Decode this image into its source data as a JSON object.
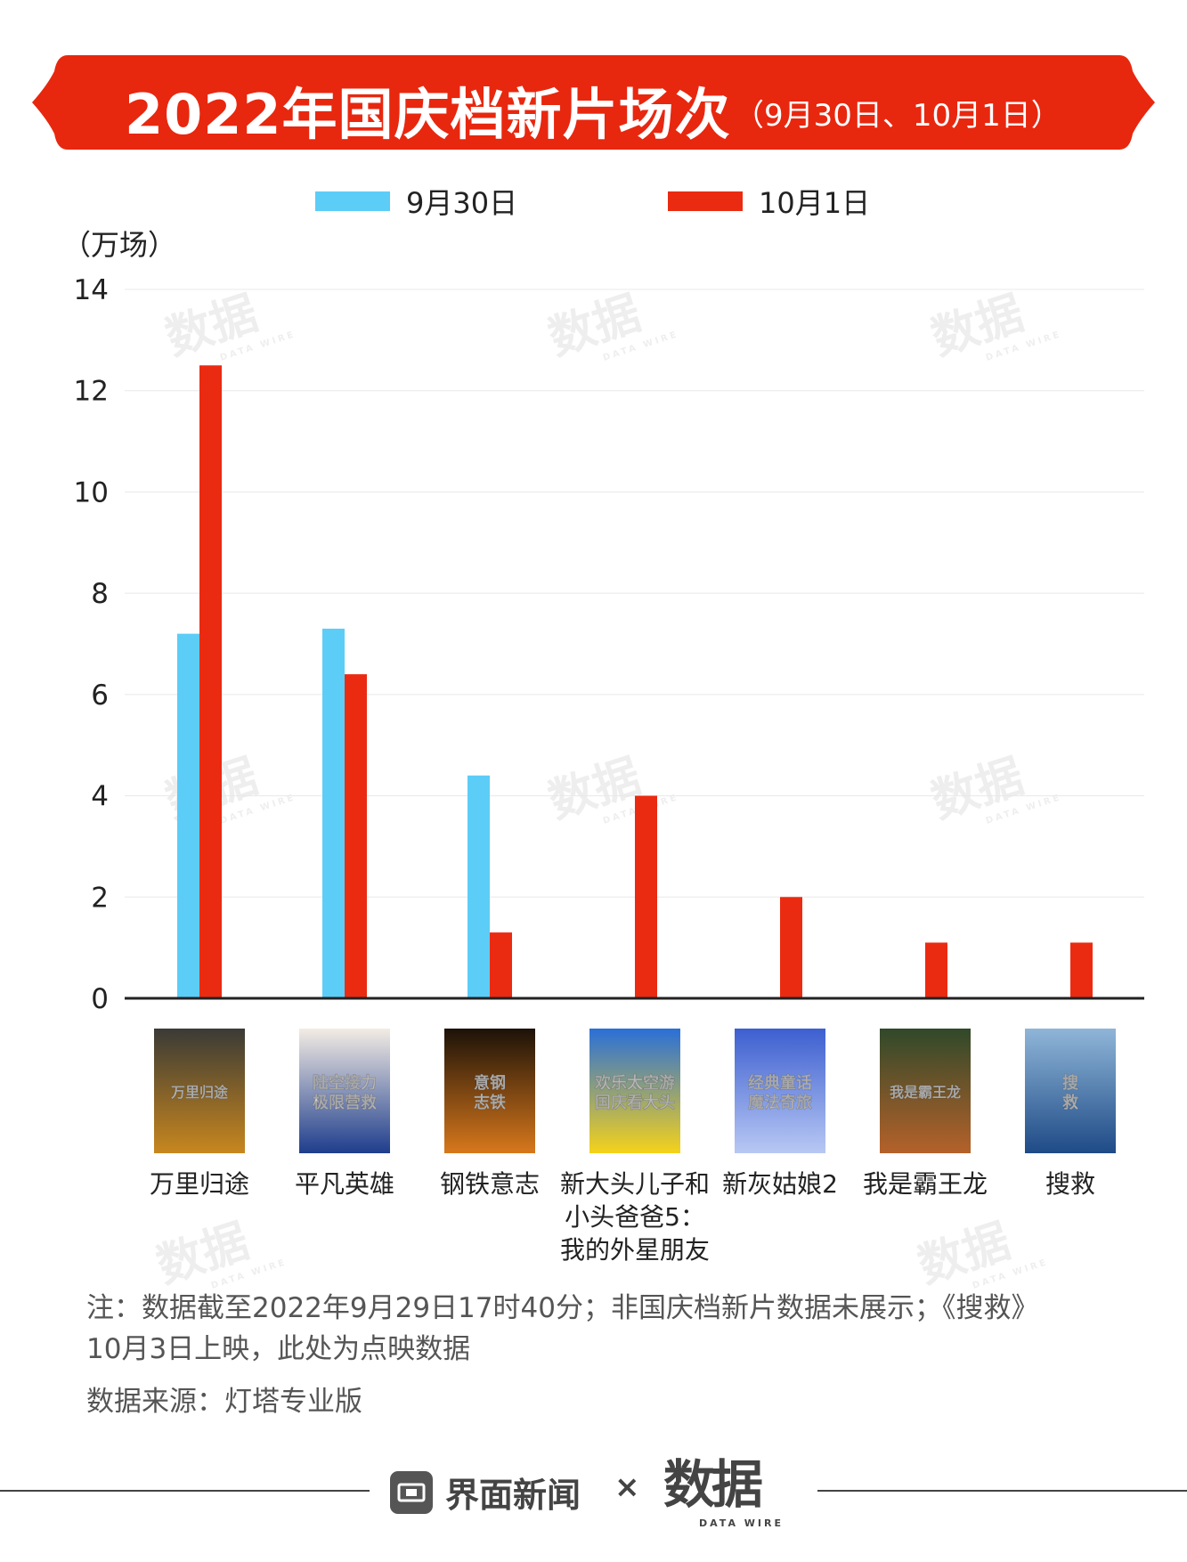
{
  "colors": {
    "series_1": "#5ccdf7",
    "series_2": "#ea2b12",
    "banner": "#e8270f",
    "axis": "#222222",
    "grid": "#e8e8e8"
  },
  "banner": {
    "title": "2022年国庆档新片场次",
    "subtitle": "（9月30日、10月1日）"
  },
  "unit_label": "（万场）",
  "chart_data": {
    "type": "bar",
    "categories": [
      "万里归途",
      "平凡英雄",
      "钢铁意志",
      "新大头儿子和小头爸爸5：我的外星朋友",
      "新灰姑娘2",
      "我是霸王龙",
      "搜救"
    ],
    "category_label_lines": [
      [
        "万里归途"
      ],
      [
        "平凡英雄"
      ],
      [
        "钢铁意志"
      ],
      [
        "新大头儿子和",
        "小头爸爸5：",
        "我的外星朋友"
      ],
      [
        "新灰姑娘2"
      ],
      [
        "我是霸王龙"
      ],
      [
        "搜救"
      ]
    ],
    "series": [
      {
        "name": "9月30日",
        "values": [
          7.2,
          7.3,
          4.4,
          0,
          0,
          0,
          0
        ]
      },
      {
        "name": "10月1日",
        "values": [
          12.5,
          6.4,
          1.3,
          4.0,
          2.0,
          1.1,
          1.1
        ]
      }
    ],
    "ylim": [
      0,
      14
    ],
    "yticks": [
      0,
      2,
      4,
      6,
      8,
      10,
      12,
      14
    ],
    "ylabel": "（万场）",
    "grid": true,
    "legend_position": "top-center"
  },
  "posters": [
    {
      "icon": "poster-万里归途",
      "colors": [
        "#3a3a36",
        "#c8871e"
      ],
      "text_lines": [
        "万里归途"
      ]
    },
    {
      "icon": "poster-平凡英雄",
      "colors": [
        "#f3ece4",
        "#1e3d8c"
      ],
      "text_lines": [
        "陆空接力",
        "极限营救"
      ]
    },
    {
      "icon": "poster-钢铁意志",
      "colors": [
        "#1c1208",
        "#d8781c"
      ],
      "text_lines": [
        "意钢",
        "志铁"
      ]
    },
    {
      "icon": "poster-新大头儿子",
      "colors": [
        "#2a6fd8",
        "#f5d21a"
      ],
      "text_lines": [
        "欢乐太空游",
        "国庆看大头"
      ]
    },
    {
      "icon": "poster-新灰姑娘2",
      "colors": [
        "#3d5fd0",
        "#b8c8f4"
      ],
      "text_lines": [
        "经典童话",
        "魔法奇旅"
      ]
    },
    {
      "icon": "poster-我是霸王龙",
      "colors": [
        "#30492a",
        "#b5612a"
      ],
      "text_lines": [
        "我是霸王龙"
      ]
    },
    {
      "icon": "poster-搜救",
      "colors": [
        "#8fb6d8",
        "#1e4a86"
      ],
      "text_lines": [
        "搜",
        "救"
      ]
    }
  ],
  "notes": {
    "line1": "注：数据截至2022年9月29日17时40分；非国庆档新片数据未展示；《搜救》",
    "line2": "10月3日上映，此处为点映数据",
    "source": "数据来源：灯塔专业版"
  },
  "footer": {
    "left_logo": "界面新闻",
    "times": "×",
    "right_logo": "数据",
    "right_logo_sub": "DATA WIRE"
  },
  "watermark": {
    "text": "数据",
    "sub": "DATA WIRE"
  }
}
